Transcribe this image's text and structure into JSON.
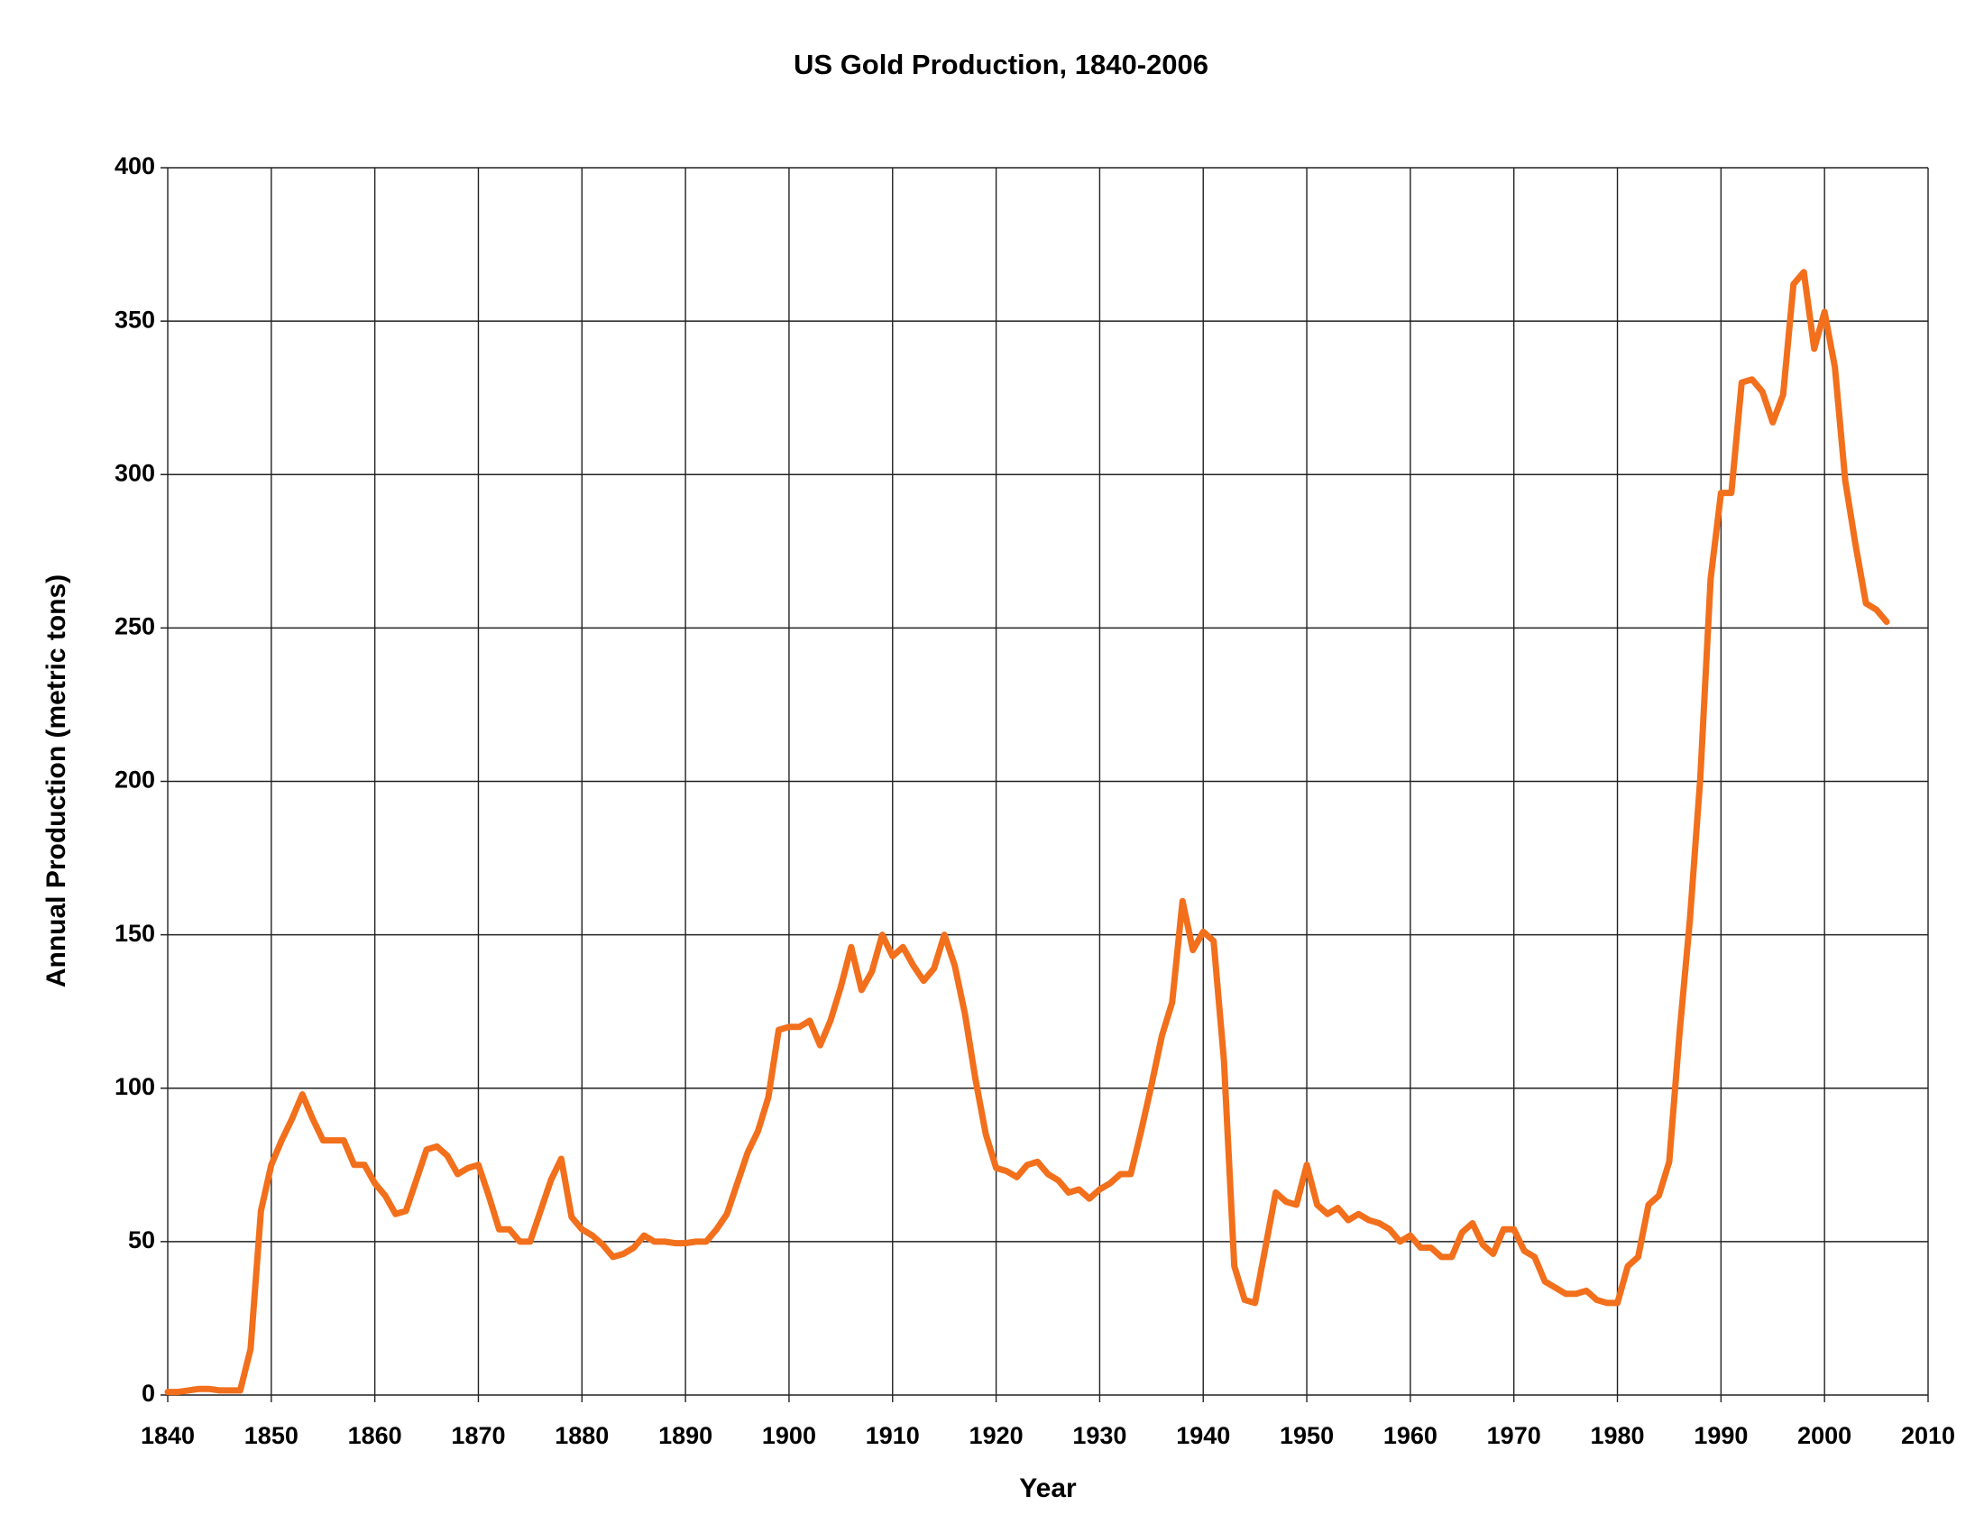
{
  "chart_data": {
    "type": "line",
    "title": "US Gold Production, 1840-2006",
    "x_label": "Year",
    "y_label": "Annual Production (metric tons)",
    "color": "#f26f1c",
    "grid": true,
    "xlim": [
      1840,
      2010
    ],
    "xticks": [
      1840,
      1850,
      1860,
      1870,
      1880,
      1890,
      1900,
      1910,
      1920,
      1930,
      1940,
      1950,
      1960,
      1970,
      1980,
      1990,
      2000,
      2010
    ],
    "ylim": [
      0,
      400
    ],
    "yticks": [
      0,
      50,
      100,
      150,
      200,
      250,
      300,
      350,
      400
    ],
    "x": [
      1840,
      1841,
      1842,
      1843,
      1844,
      1845,
      1846,
      1847,
      1848,
      1849,
      1850,
      1851,
      1852,
      1853,
      1854,
      1855,
      1856,
      1857,
      1858,
      1859,
      1860,
      1861,
      1862,
      1863,
      1864,
      1865,
      1866,
      1867,
      1868,
      1869,
      1870,
      1871,
      1872,
      1873,
      1874,
      1875,
      1876,
      1877,
      1878,
      1879,
      1880,
      1881,
      1882,
      1883,
      1884,
      1885,
      1886,
      1887,
      1888,
      1889,
      1890,
      1891,
      1892,
      1893,
      1894,
      1895,
      1896,
      1897,
      1898,
      1899,
      1900,
      1901,
      1902,
      1903,
      1904,
      1905,
      1906,
      1907,
      1908,
      1909,
      1910,
      1911,
      1912,
      1913,
      1914,
      1915,
      1916,
      1917,
      1918,
      1919,
      1920,
      1921,
      1922,
      1923,
      1924,
      1925,
      1926,
      1927,
      1928,
      1929,
      1930,
      1931,
      1932,
      1933,
      1934,
      1935,
      1936,
      1937,
      1938,
      1939,
      1940,
      1941,
      1942,
      1943,
      1944,
      1945,
      1946,
      1947,
      1948,
      1949,
      1950,
      1951,
      1952,
      1953,
      1954,
      1955,
      1956,
      1957,
      1958,
      1959,
      1960,
      1961,
      1962,
      1963,
      1964,
      1965,
      1966,
      1967,
      1968,
      1969,
      1970,
      1971,
      1972,
      1973,
      1974,
      1975,
      1976,
      1977,
      1978,
      1979,
      1980,
      1981,
      1982,
      1983,
      1984,
      1985,
      1986,
      1987,
      1988,
      1989,
      1990,
      1991,
      1992,
      1993,
      1994,
      1995,
      1996,
      1997,
      1998,
      1999,
      2000,
      2001,
      2002,
      2003,
      2004,
      2005,
      2006
    ],
    "values": [
      1,
      1,
      1.5,
      2,
      2,
      1.5,
      1.5,
      1.5,
      15,
      60,
      75,
      83,
      90,
      98,
      90,
      83,
      83,
      83,
      75,
      75,
      69,
      65,
      59,
      60,
      70,
      80,
      81,
      78,
      72,
      74,
      75,
      65,
      54,
      54,
      50,
      50,
      60,
      70,
      77,
      58,
      54,
      52,
      49,
      45,
      46,
      48,
      52,
      50,
      50,
      49.5,
      49.5,
      50,
      50,
      54,
      59,
      69,
      79,
      86,
      97,
      119,
      120,
      120,
      122,
      114,
      122,
      133,
      146,
      132,
      138,
      150,
      143,
      146,
      140,
      135,
      139,
      150,
      140,
      124,
      103,
      85,
      74,
      73,
      71,
      75,
      76,
      72,
      70,
      66,
      67,
      64,
      67,
      69,
      72,
      72,
      86,
      101,
      117,
      128,
      161,
      145,
      151,
      148,
      109,
      42,
      31,
      30,
      48,
      66,
      63,
      62,
      75,
      62,
      59,
      61,
      57,
      59,
      57,
      56,
      54,
      50,
      52,
      48,
      48,
      45,
      45,
      53,
      56,
      49,
      46,
      54,
      54,
      47,
      45,
      37,
      35,
      33,
      33,
      34,
      31,
      30,
      30,
      42,
      45,
      62,
      65,
      76,
      118,
      155,
      201,
      266,
      294,
      294,
      330,
      331,
      327,
      317,
      326,
      362,
      366,
      341,
      353,
      335,
      298,
      277,
      258,
      256,
      252
    ]
  }
}
